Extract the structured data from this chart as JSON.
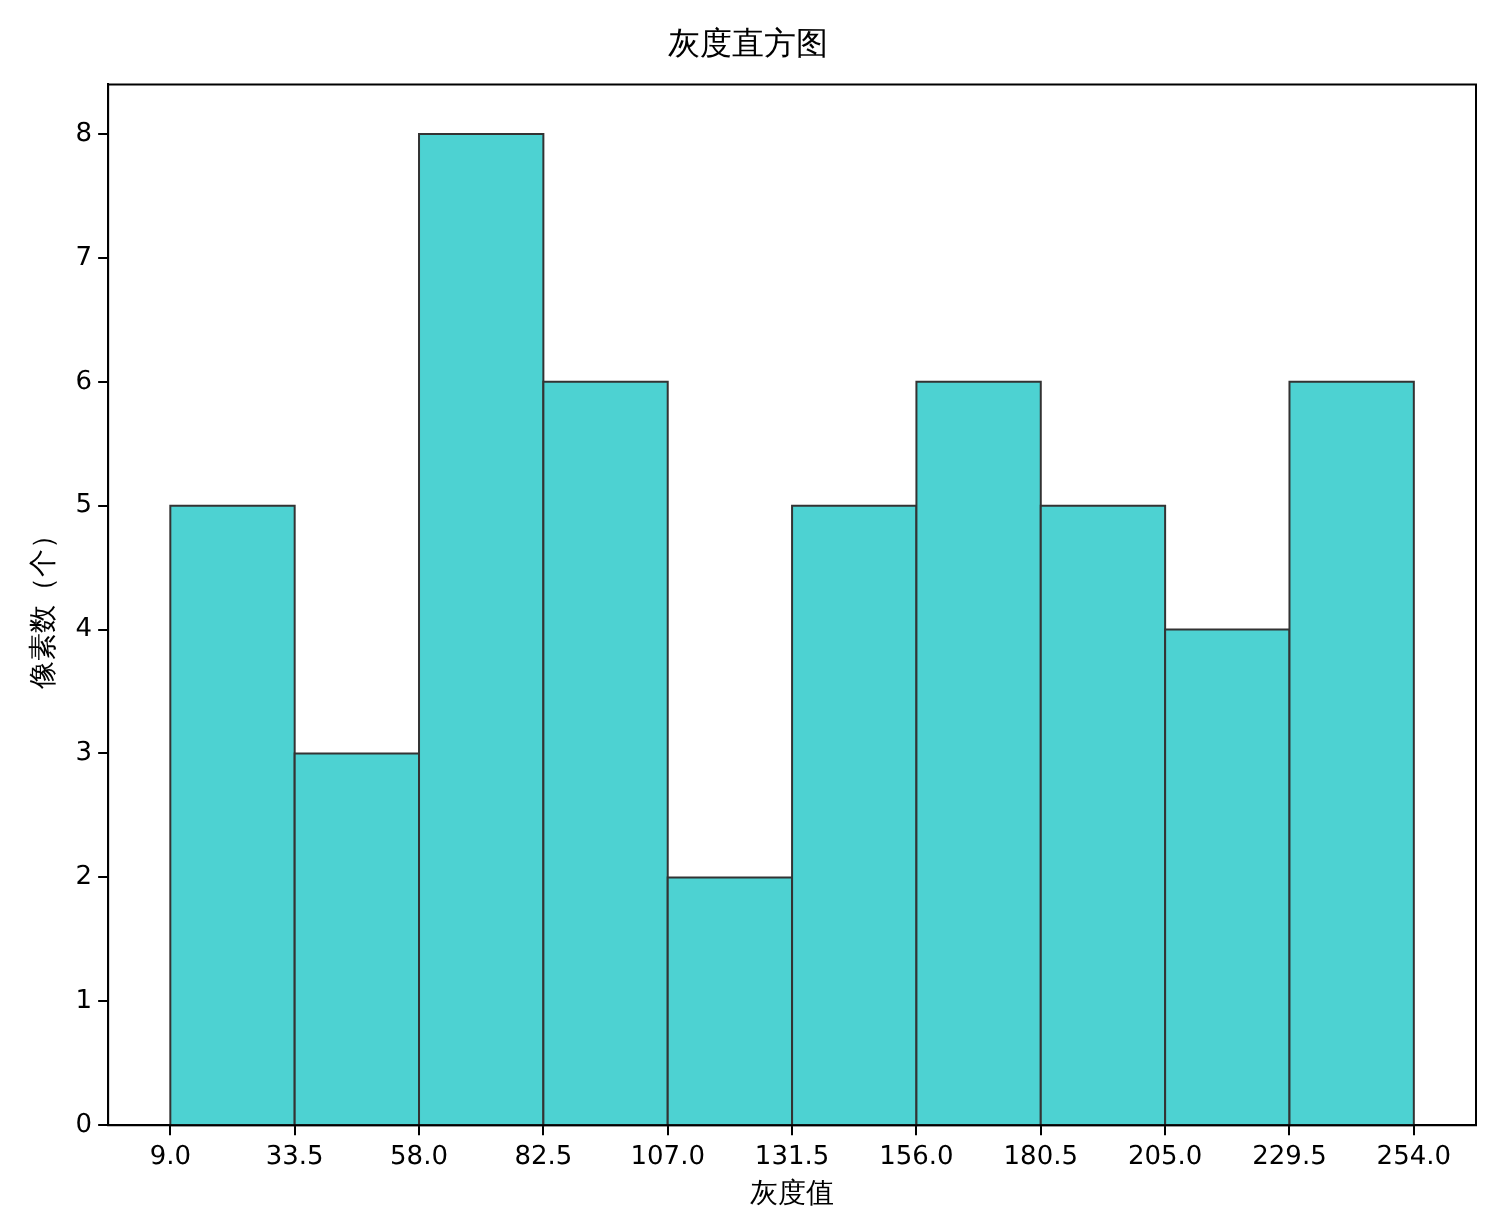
{
  "chart_data": {
    "type": "histogram",
    "title": "灰度直方图",
    "xlabel": "灰度值",
    "ylabel": "像素数（个）",
    "bins": [
      9.0,
      33.5,
      58.0,
      82.5,
      107.0,
      131.5,
      156.0,
      180.5,
      205.0,
      229.5,
      254.0
    ],
    "values": [
      5,
      3,
      8,
      6,
      2,
      5,
      6,
      5,
      4,
      6
    ],
    "color": "#4dd2d2",
    "xlim": [
      -3.25,
      266.25
    ],
    "xticks": [
      {
        "value": 9.0,
        "label": "9.0"
      },
      {
        "value": 33.5,
        "label": "33.5"
      },
      {
        "value": 58.0,
        "label": "58.0"
      },
      {
        "value": 82.5,
        "label": "82.5"
      },
      {
        "value": 107.0,
        "label": "107.0"
      },
      {
        "value": 131.5,
        "label": "131.5"
      },
      {
        "value": 156.0,
        "label": "156.0"
      },
      {
        "value": 180.5,
        "label": "180.5"
      },
      {
        "value": 205.0,
        "label": "205.0"
      },
      {
        "value": 229.5,
        "label": "229.5"
      },
      {
        "value": 254.0,
        "label": "254.0"
      }
    ],
    "ylim": [
      0,
      8.4
    ],
    "yticks": [
      0,
      1,
      2,
      3,
      4,
      5,
      6,
      7,
      8
    ]
  }
}
